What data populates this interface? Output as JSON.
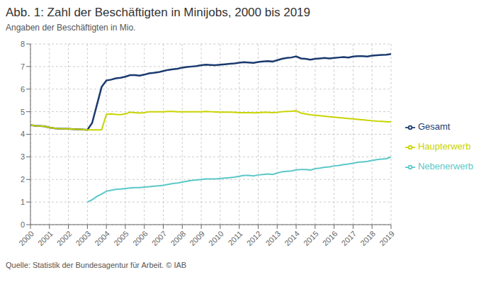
{
  "chart_data": {
    "type": "line",
    "title": "Abb. 1: Zahl der Beschäftigten in Minijobs, 2000 bis 2019",
    "subtitle": "Angaben der Beschäftigten in Mio.",
    "source": "Quelle: Statistik der Bundesagentur für Arbeit. © IAB",
    "x": [
      2000,
      2000.25,
      2000.5,
      2000.75,
      2001,
      2001.25,
      2001.5,
      2001.75,
      2002,
      2002.25,
      2002.5,
      2002.75,
      2003,
      2003.25,
      2003.5,
      2003.75,
      2004,
      2004.25,
      2004.5,
      2004.75,
      2005,
      2005.25,
      2005.5,
      2005.75,
      2006,
      2006.25,
      2006.5,
      2006.75,
      2007,
      2007.25,
      2007.5,
      2007.75,
      2008,
      2008.25,
      2008.5,
      2008.75,
      2009,
      2009.25,
      2009.5,
      2009.75,
      2010,
      2010.25,
      2010.5,
      2010.75,
      2011,
      2011.25,
      2011.5,
      2011.75,
      2012,
      2012.25,
      2012.5,
      2012.75,
      2013,
      2013.25,
      2013.5,
      2013.75,
      2014,
      2014.25,
      2014.5,
      2014.75,
      2015,
      2015.25,
      2015.5,
      2015.75,
      2016,
      2016.25,
      2016.5,
      2016.75,
      2017,
      2017.25,
      2017.5,
      2017.75,
      2018,
      2018.25,
      2018.5,
      2018.75,
      2019
    ],
    "series": [
      {
        "name": "Gesamt",
        "color": "#1a3a6e",
        "values": [
          4.41,
          4.38,
          4.37,
          4.35,
          4.3,
          4.27,
          4.25,
          4.24,
          4.24,
          4.23,
          4.22,
          4.21,
          4.2,
          4.5,
          5.3,
          6.1,
          6.38,
          6.42,
          6.48,
          6.5,
          6.55,
          6.62,
          6.62,
          6.6,
          6.64,
          6.7,
          6.72,
          6.75,
          6.8,
          6.85,
          6.88,
          6.9,
          6.95,
          6.98,
          7.0,
          7.02,
          7.06,
          7.08,
          7.07,
          7.06,
          7.08,
          7.1,
          7.12,
          7.14,
          7.17,
          7.19,
          7.18,
          7.16,
          7.2,
          7.22,
          7.24,
          7.22,
          7.28,
          7.34,
          7.38,
          7.4,
          7.45,
          7.36,
          7.34,
          7.3,
          7.34,
          7.36,
          7.38,
          7.36,
          7.38,
          7.4,
          7.42,
          7.4,
          7.44,
          7.46,
          7.46,
          7.44,
          7.48,
          7.5,
          7.51,
          7.52,
          7.55
        ]
      },
      {
        "name": "Haupterwerb",
        "color": "#c8d400",
        "values": [
          4.41,
          4.38,
          4.37,
          4.35,
          4.3,
          4.27,
          4.25,
          4.24,
          4.24,
          4.23,
          4.22,
          4.21,
          4.2,
          4.2,
          4.2,
          4.2,
          4.88,
          4.9,
          4.88,
          4.87,
          4.9,
          4.98,
          4.96,
          4.94,
          4.96,
          5.0,
          5.0,
          5.0,
          5.0,
          5.01,
          5.01,
          5.0,
          5.0,
          5.0,
          5.0,
          5.0,
          5.0,
          5.01,
          5.0,
          4.99,
          4.98,
          4.98,
          4.98,
          4.97,
          4.96,
          4.96,
          4.96,
          4.95,
          4.96,
          4.97,
          4.97,
          4.96,
          4.97,
          5.0,
          5.01,
          5.02,
          5.04,
          4.94,
          4.9,
          4.86,
          4.84,
          4.82,
          4.8,
          4.78,
          4.76,
          4.74,
          4.72,
          4.7,
          4.68,
          4.66,
          4.64,
          4.62,
          4.6,
          4.58,
          4.57,
          4.56,
          4.55
        ]
      },
      {
        "name": "Nebenerwerb",
        "color": "#5bc8c8",
        "values": [
          null,
          null,
          null,
          null,
          null,
          null,
          null,
          null,
          null,
          null,
          null,
          null,
          1.0,
          1.1,
          1.25,
          1.35,
          1.48,
          1.52,
          1.56,
          1.58,
          1.6,
          1.62,
          1.64,
          1.64,
          1.66,
          1.68,
          1.7,
          1.72,
          1.74,
          1.78,
          1.82,
          1.84,
          1.88,
          1.92,
          1.96,
          1.98,
          2.0,
          2.02,
          2.02,
          2.02,
          2.04,
          2.06,
          2.08,
          2.1,
          2.14,
          2.18,
          2.18,
          2.16,
          2.2,
          2.22,
          2.24,
          2.22,
          2.28,
          2.34,
          2.36,
          2.38,
          2.42,
          2.44,
          2.44,
          2.42,
          2.48,
          2.5,
          2.54,
          2.56,
          2.6,
          2.62,
          2.66,
          2.68,
          2.72,
          2.76,
          2.78,
          2.8,
          2.84,
          2.88,
          2.9,
          2.92,
          3.0
        ]
      }
    ],
    "xlim": [
      2000,
      2019
    ],
    "xticks": [
      2000,
      2001,
      2002,
      2003,
      2004,
      2005,
      2006,
      2007,
      2008,
      2009,
      2010,
      2011,
      2012,
      2013,
      2014,
      2015,
      2016,
      2017,
      2018,
      2019
    ],
    "ylim": [
      0,
      8
    ],
    "yticks": [
      0,
      1,
      2,
      3,
      4,
      5,
      6,
      7,
      8
    ],
    "grid": true,
    "legend": "right"
  }
}
